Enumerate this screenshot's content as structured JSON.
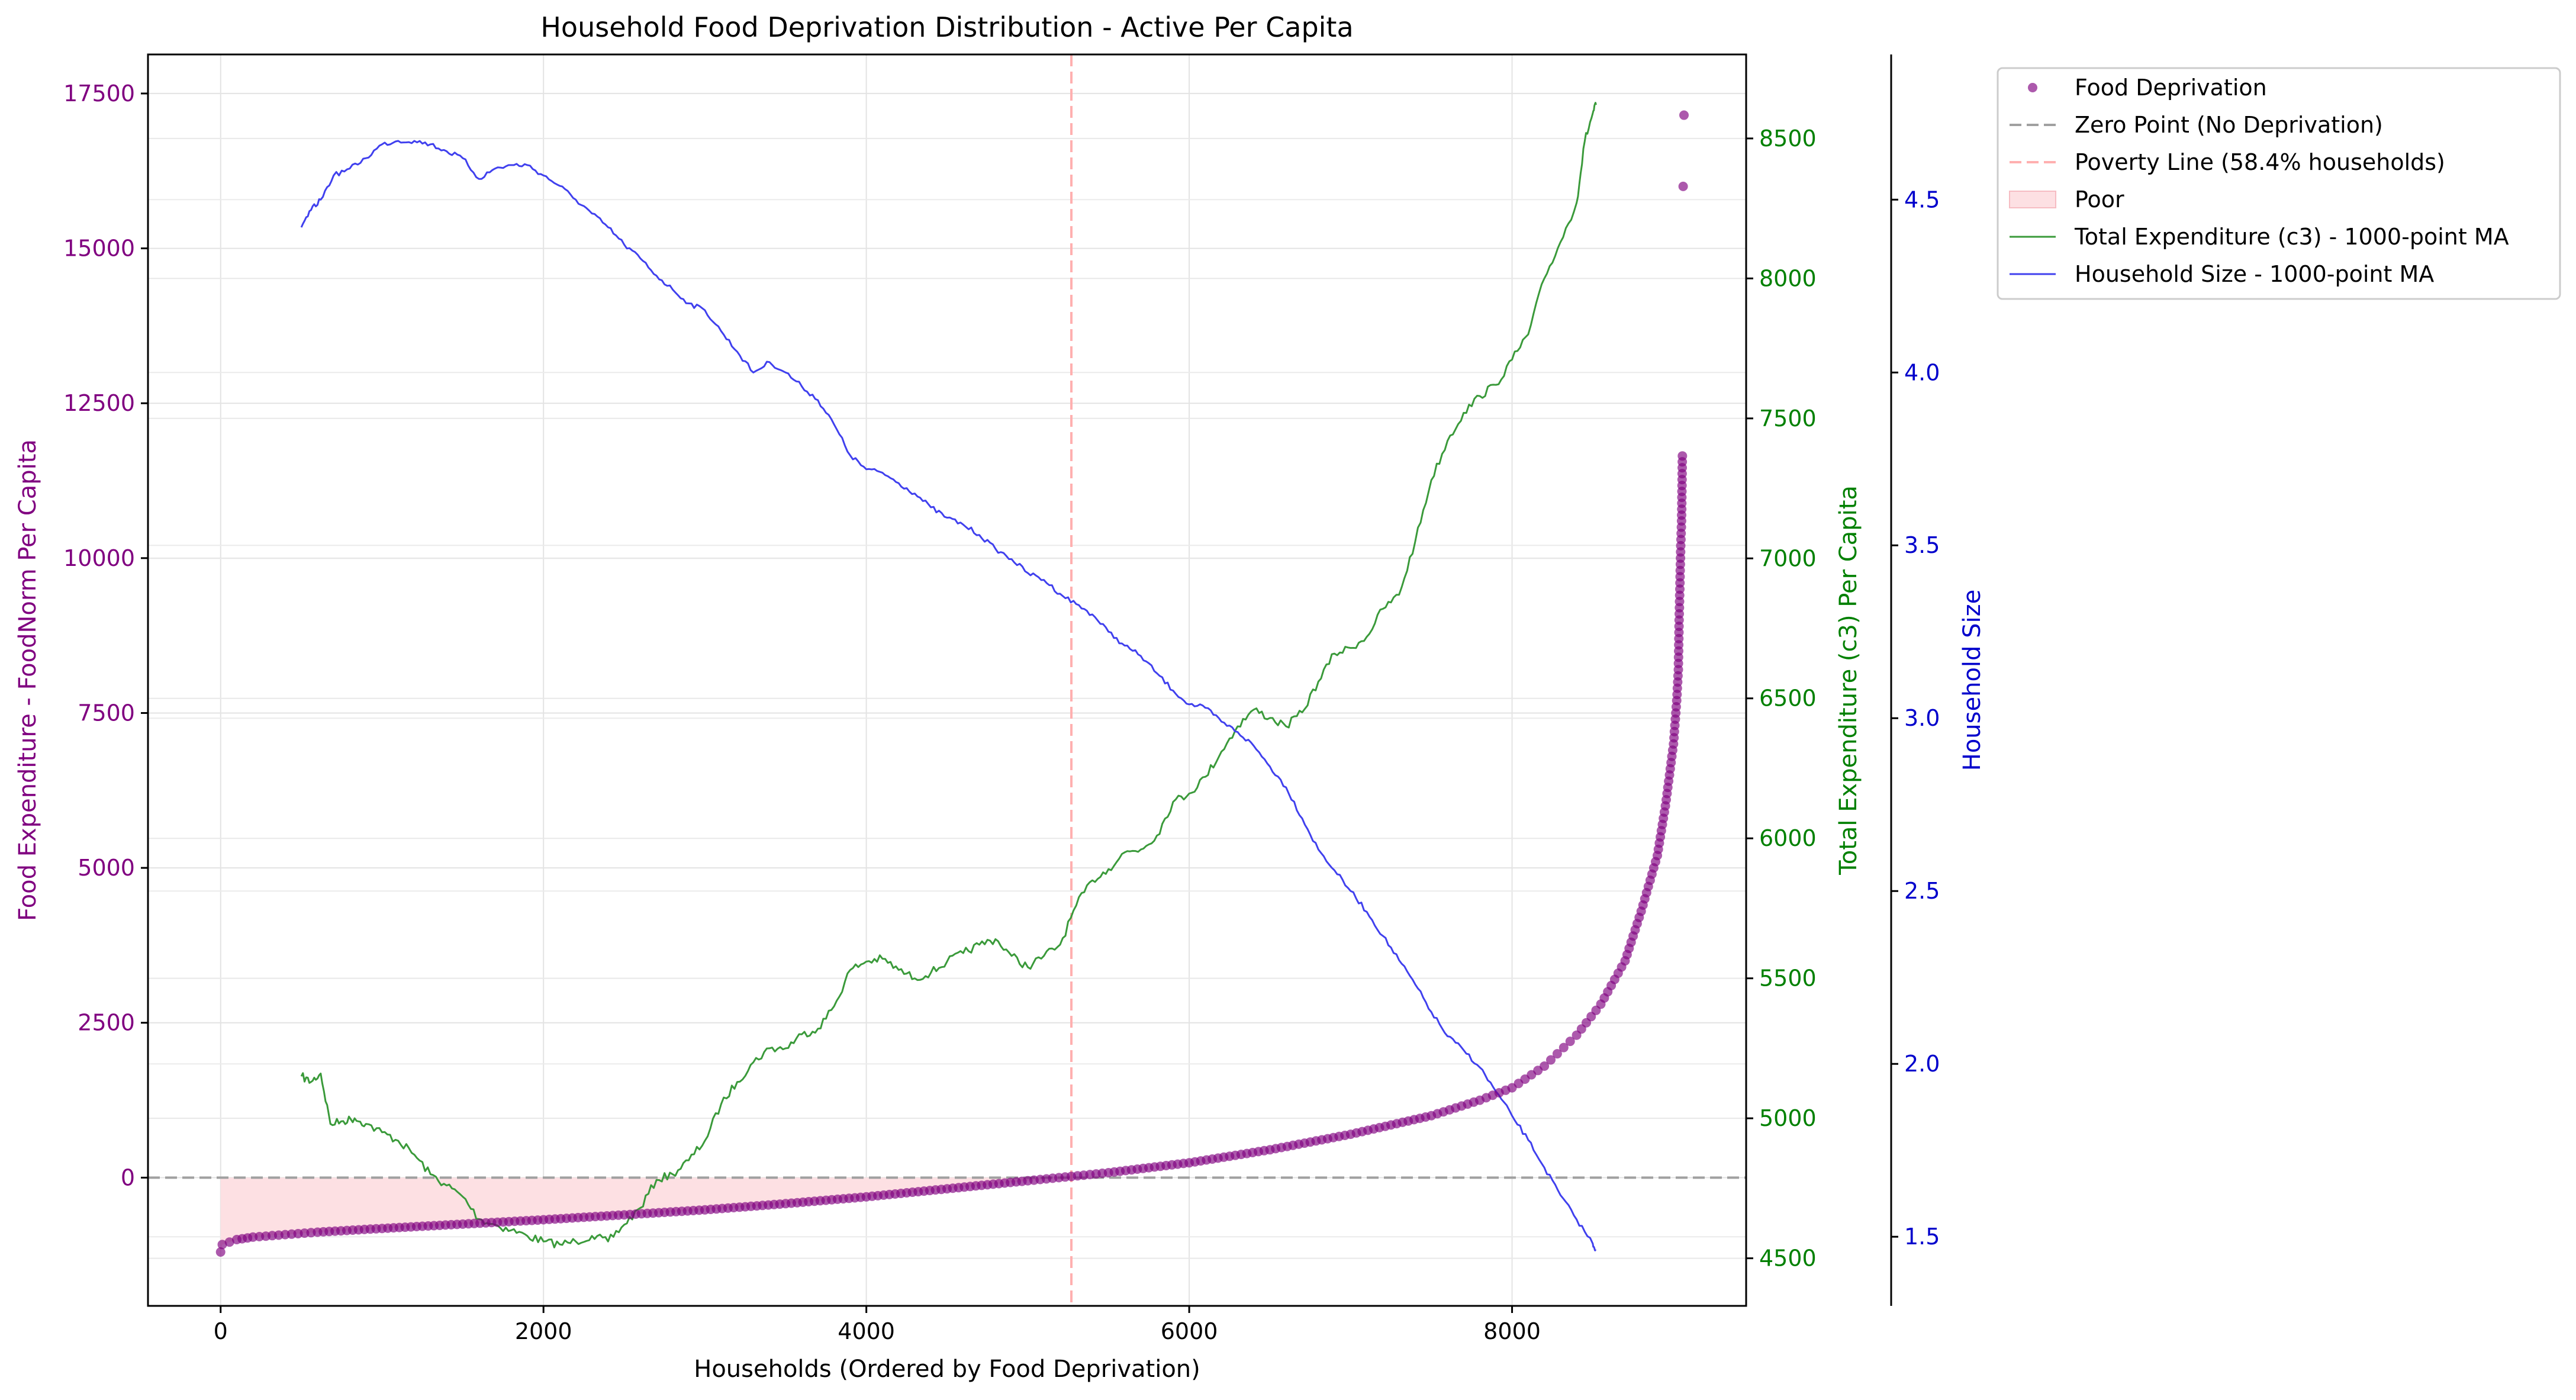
{
  "chart_data": {
    "type": "scatter",
    "title": "Household Food Deprivation Distribution - Active Per Capita",
    "xlabel": "Households (Ordered by Food Deprivation)",
    "ylabel_left": "Food Expenditure - FoodNorm Per Capita",
    "ylabel_right1": "Total Expenditure (c3) Per Capita",
    "ylabel_right2": "Household Size",
    "grid": true,
    "legend_position": "outside-right-top",
    "x_axis": {
      "range": [
        -450,
        9450
      ],
      "ticks": [
        0,
        2000,
        4000,
        6000,
        8000
      ],
      "tick_labels": [
        "0",
        "2000",
        "4000",
        "6000",
        "8000"
      ]
    },
    "y_left": {
      "range": [
        -2070,
        18130
      ],
      "ticks": [
        0,
        2500,
        5000,
        7500,
        10000,
        12500,
        15000,
        17500
      ],
      "tick_labels": [
        "0",
        "2500",
        "5000",
        "7500",
        "10000",
        "12500",
        "15000",
        "17500"
      ],
      "color": "#800080"
    },
    "y_right1": {
      "range": [
        4330,
        8800
      ],
      "ticks": [
        4500,
        5000,
        5500,
        6000,
        6500,
        7000,
        7500,
        8000,
        8500
      ],
      "tick_labels": [
        "4500",
        "5000",
        "5500",
        "6000",
        "6500",
        "7000",
        "7500",
        "8000",
        "8500"
      ],
      "color": "#008000"
    },
    "y_right2": {
      "range": [
        1.3,
        4.92
      ],
      "ticks": [
        1.5,
        2.0,
        2.5,
        3.0,
        3.5,
        4.0,
        4.5
      ],
      "tick_labels": [
        "1.5",
        "2.0",
        "2.5",
        "3.0",
        "3.5",
        "4.0",
        "4.5"
      ],
      "color": "#0000cc"
    },
    "colors": {
      "deprivation": "#800080",
      "zero_line": "#a0a0a0",
      "poverty_line": "#ffb0b0",
      "poor_fill": "#fde0e3",
      "expenditure": "#3a9a3a",
      "household_size": "#4040ee"
    },
    "poverty_line_x": 5270,
    "poor_fill_range": [
      0,
      5270
    ],
    "zero_point_y": 0,
    "series": [
      {
        "name": "Food Deprivation",
        "kind": "scatter",
        "points": [
          [
            0,
            -1200
          ],
          [
            10,
            -1080
          ],
          [
            100,
            -1000
          ],
          [
            200,
            -960
          ],
          [
            400,
            -920
          ],
          [
            600,
            -880
          ],
          [
            1000,
            -820
          ],
          [
            1500,
            -750
          ],
          [
            2000,
            -680
          ],
          [
            2500,
            -600
          ],
          [
            3000,
            -520
          ],
          [
            3500,
            -420
          ],
          [
            4000,
            -310
          ],
          [
            4500,
            -180
          ],
          [
            5000,
            -50
          ],
          [
            5270,
            20
          ],
          [
            5500,
            80
          ],
          [
            6000,
            240
          ],
          [
            6500,
            450
          ],
          [
            7000,
            700
          ],
          [
            7500,
            1000
          ],
          [
            7800,
            1250
          ],
          [
            8000,
            1450
          ],
          [
            8200,
            1800
          ],
          [
            8400,
            2300
          ],
          [
            8550,
            2800
          ],
          [
            8700,
            3500
          ],
          [
            8800,
            4300
          ],
          [
            8900,
            5200
          ],
          [
            8950,
            6000
          ],
          [
            9000,
            7000
          ],
          [
            9020,
            7700
          ],
          [
            9030,
            8200
          ],
          [
            9035,
            9000
          ],
          [
            9040,
            9600
          ],
          [
            9045,
            10200
          ],
          [
            9050,
            10600
          ],
          [
            9055,
            11650
          ],
          [
            9060,
            16000
          ],
          [
            9065,
            17150
          ]
        ]
      },
      {
        "name": "Total Expenditure (c3) - 1000-point MA",
        "kind": "line",
        "axis": "right1",
        "points": [
          [
            500,
            5150
          ],
          [
            560,
            5130
          ],
          [
            620,
            5160
          ],
          [
            680,
            4980
          ],
          [
            760,
            4990
          ],
          [
            830,
            5000
          ],
          [
            900,
            4980
          ],
          [
            1000,
            4950
          ],
          [
            1100,
            4920
          ],
          [
            1200,
            4870
          ],
          [
            1300,
            4800
          ],
          [
            1400,
            4760
          ],
          [
            1500,
            4720
          ],
          [
            1600,
            4640
          ],
          [
            1700,
            4620
          ],
          [
            1800,
            4600
          ],
          [
            1900,
            4580
          ],
          [
            2000,
            4560
          ],
          [
            2100,
            4550
          ],
          [
            2200,
            4560
          ],
          [
            2300,
            4580
          ],
          [
            2400,
            4560
          ],
          [
            2500,
            4620
          ],
          [
            2600,
            4680
          ],
          [
            2700,
            4780
          ],
          [
            2800,
            4800
          ],
          [
            2900,
            4850
          ],
          [
            3000,
            4920
          ],
          [
            3100,
            5050
          ],
          [
            3200,
            5130
          ],
          [
            3300,
            5200
          ],
          [
            3400,
            5250
          ],
          [
            3500,
            5250
          ],
          [
            3600,
            5300
          ],
          [
            3700,
            5320
          ],
          [
            3800,
            5400
          ],
          [
            3900,
            5530
          ],
          [
            4000,
            5560
          ],
          [
            4100,
            5570
          ],
          [
            4200,
            5530
          ],
          [
            4300,
            5500
          ],
          [
            4400,
            5520
          ],
          [
            4500,
            5560
          ],
          [
            4600,
            5590
          ],
          [
            4700,
            5620
          ],
          [
            4800,
            5640
          ],
          [
            4900,
            5580
          ],
          [
            5000,
            5540
          ],
          [
            5100,
            5580
          ],
          [
            5200,
            5620
          ],
          [
            5300,
            5760
          ],
          [
            5400,
            5850
          ],
          [
            5500,
            5890
          ],
          [
            5600,
            5950
          ],
          [
            5700,
            5960
          ],
          [
            5800,
            6010
          ],
          [
            5900,
            6130
          ],
          [
            6000,
            6160
          ],
          [
            6100,
            6220
          ],
          [
            6200,
            6310
          ],
          [
            6300,
            6400
          ],
          [
            6400,
            6460
          ],
          [
            6500,
            6430
          ],
          [
            6600,
            6400
          ],
          [
            6700,
            6450
          ],
          [
            6800,
            6560
          ],
          [
            6900,
            6660
          ],
          [
            7000,
            6680
          ],
          [
            7100,
            6720
          ],
          [
            7200,
            6820
          ],
          [
            7300,
            6870
          ],
          [
            7400,
            7060
          ],
          [
            7500,
            7280
          ],
          [
            7600,
            7420
          ],
          [
            7700,
            7520
          ],
          [
            7800,
            7580
          ],
          [
            7900,
            7620
          ],
          [
            8000,
            7710
          ],
          [
            8100,
            7800
          ],
          [
            8200,
            8000
          ],
          [
            8300,
            8130
          ],
          [
            8400,
            8270
          ],
          [
            8450,
            8490
          ],
          [
            8500,
            8590
          ],
          [
            8520,
            8620
          ]
        ]
      },
      {
        "name": "Household Size - 1000-point MA",
        "kind": "line",
        "axis": "right2",
        "points": [
          [
            500,
            4.42
          ],
          [
            560,
            4.47
          ],
          [
            620,
            4.5
          ],
          [
            700,
            4.57
          ],
          [
            800,
            4.59
          ],
          [
            900,
            4.62
          ],
          [
            1000,
            4.66
          ],
          [
            1100,
            4.67
          ],
          [
            1200,
            4.67
          ],
          [
            1300,
            4.66
          ],
          [
            1400,
            4.64
          ],
          [
            1500,
            4.62
          ],
          [
            1600,
            4.56
          ],
          [
            1700,
            4.59
          ],
          [
            1800,
            4.6
          ],
          [
            1900,
            4.6
          ],
          [
            2000,
            4.57
          ],
          [
            2100,
            4.54
          ],
          [
            2200,
            4.5
          ],
          [
            2300,
            4.46
          ],
          [
            2400,
            4.42
          ],
          [
            2500,
            4.37
          ],
          [
            2600,
            4.33
          ],
          [
            2700,
            4.28
          ],
          [
            2800,
            4.24
          ],
          [
            2900,
            4.2
          ],
          [
            3000,
            4.18
          ],
          [
            3100,
            4.12
          ],
          [
            3200,
            4.06
          ],
          [
            3300,
            4.0
          ],
          [
            3400,
            4.03
          ],
          [
            3500,
            4.0
          ],
          [
            3600,
            3.96
          ],
          [
            3700,
            3.92
          ],
          [
            3800,
            3.85
          ],
          [
            3900,
            3.76
          ],
          [
            4000,
            3.72
          ],
          [
            4100,
            3.71
          ],
          [
            4200,
            3.68
          ],
          [
            4300,
            3.65
          ],
          [
            4400,
            3.61
          ],
          [
            4500,
            3.58
          ],
          [
            4600,
            3.56
          ],
          [
            4700,
            3.53
          ],
          [
            4800,
            3.49
          ],
          [
            4900,
            3.46
          ],
          [
            5000,
            3.42
          ],
          [
            5100,
            3.4
          ],
          [
            5200,
            3.36
          ],
          [
            5300,
            3.33
          ],
          [
            5400,
            3.3
          ],
          [
            5500,
            3.25
          ],
          [
            5600,
            3.21
          ],
          [
            5700,
            3.18
          ],
          [
            5800,
            3.13
          ],
          [
            5900,
            3.08
          ],
          [
            6000,
            3.04
          ],
          [
            6100,
            3.03
          ],
          [
            6200,
            2.99
          ],
          [
            6300,
            2.96
          ],
          [
            6400,
            2.92
          ],
          [
            6500,
            2.86
          ],
          [
            6600,
            2.8
          ],
          [
            6700,
            2.71
          ],
          [
            6800,
            2.62
          ],
          [
            6900,
            2.56
          ],
          [
            7000,
            2.5
          ],
          [
            7100,
            2.44
          ],
          [
            7200,
            2.37
          ],
          [
            7300,
            2.3
          ],
          [
            7400,
            2.23
          ],
          [
            7500,
            2.15
          ],
          [
            7600,
            2.08
          ],
          [
            7700,
            2.04
          ],
          [
            7800,
            1.99
          ],
          [
            7900,
            1.92
          ],
          [
            8000,
            1.85
          ],
          [
            8100,
            1.78
          ],
          [
            8200,
            1.7
          ],
          [
            8300,
            1.62
          ],
          [
            8400,
            1.55
          ],
          [
            8500,
            1.48
          ],
          [
            8520,
            1.46
          ]
        ]
      }
    ],
    "legend": [
      {
        "label": "Food Deprivation",
        "marker": "dot",
        "color": "#800080"
      },
      {
        "label": "Zero Point (No Deprivation)",
        "marker": "dash",
        "color": "#a0a0a0"
      },
      {
        "label": "Poverty Line (58.4% households)",
        "marker": "dash",
        "color": "#ffb0b0"
      },
      {
        "label": "Poor",
        "marker": "patch",
        "color": "#fde0e3"
      },
      {
        "label": "Total Expenditure (c3) - 1000-point MA",
        "marker": "line",
        "color": "#3a9a3a"
      },
      {
        "label": "Household Size - 1000-point MA",
        "marker": "line",
        "color": "#4040ee"
      }
    ]
  }
}
